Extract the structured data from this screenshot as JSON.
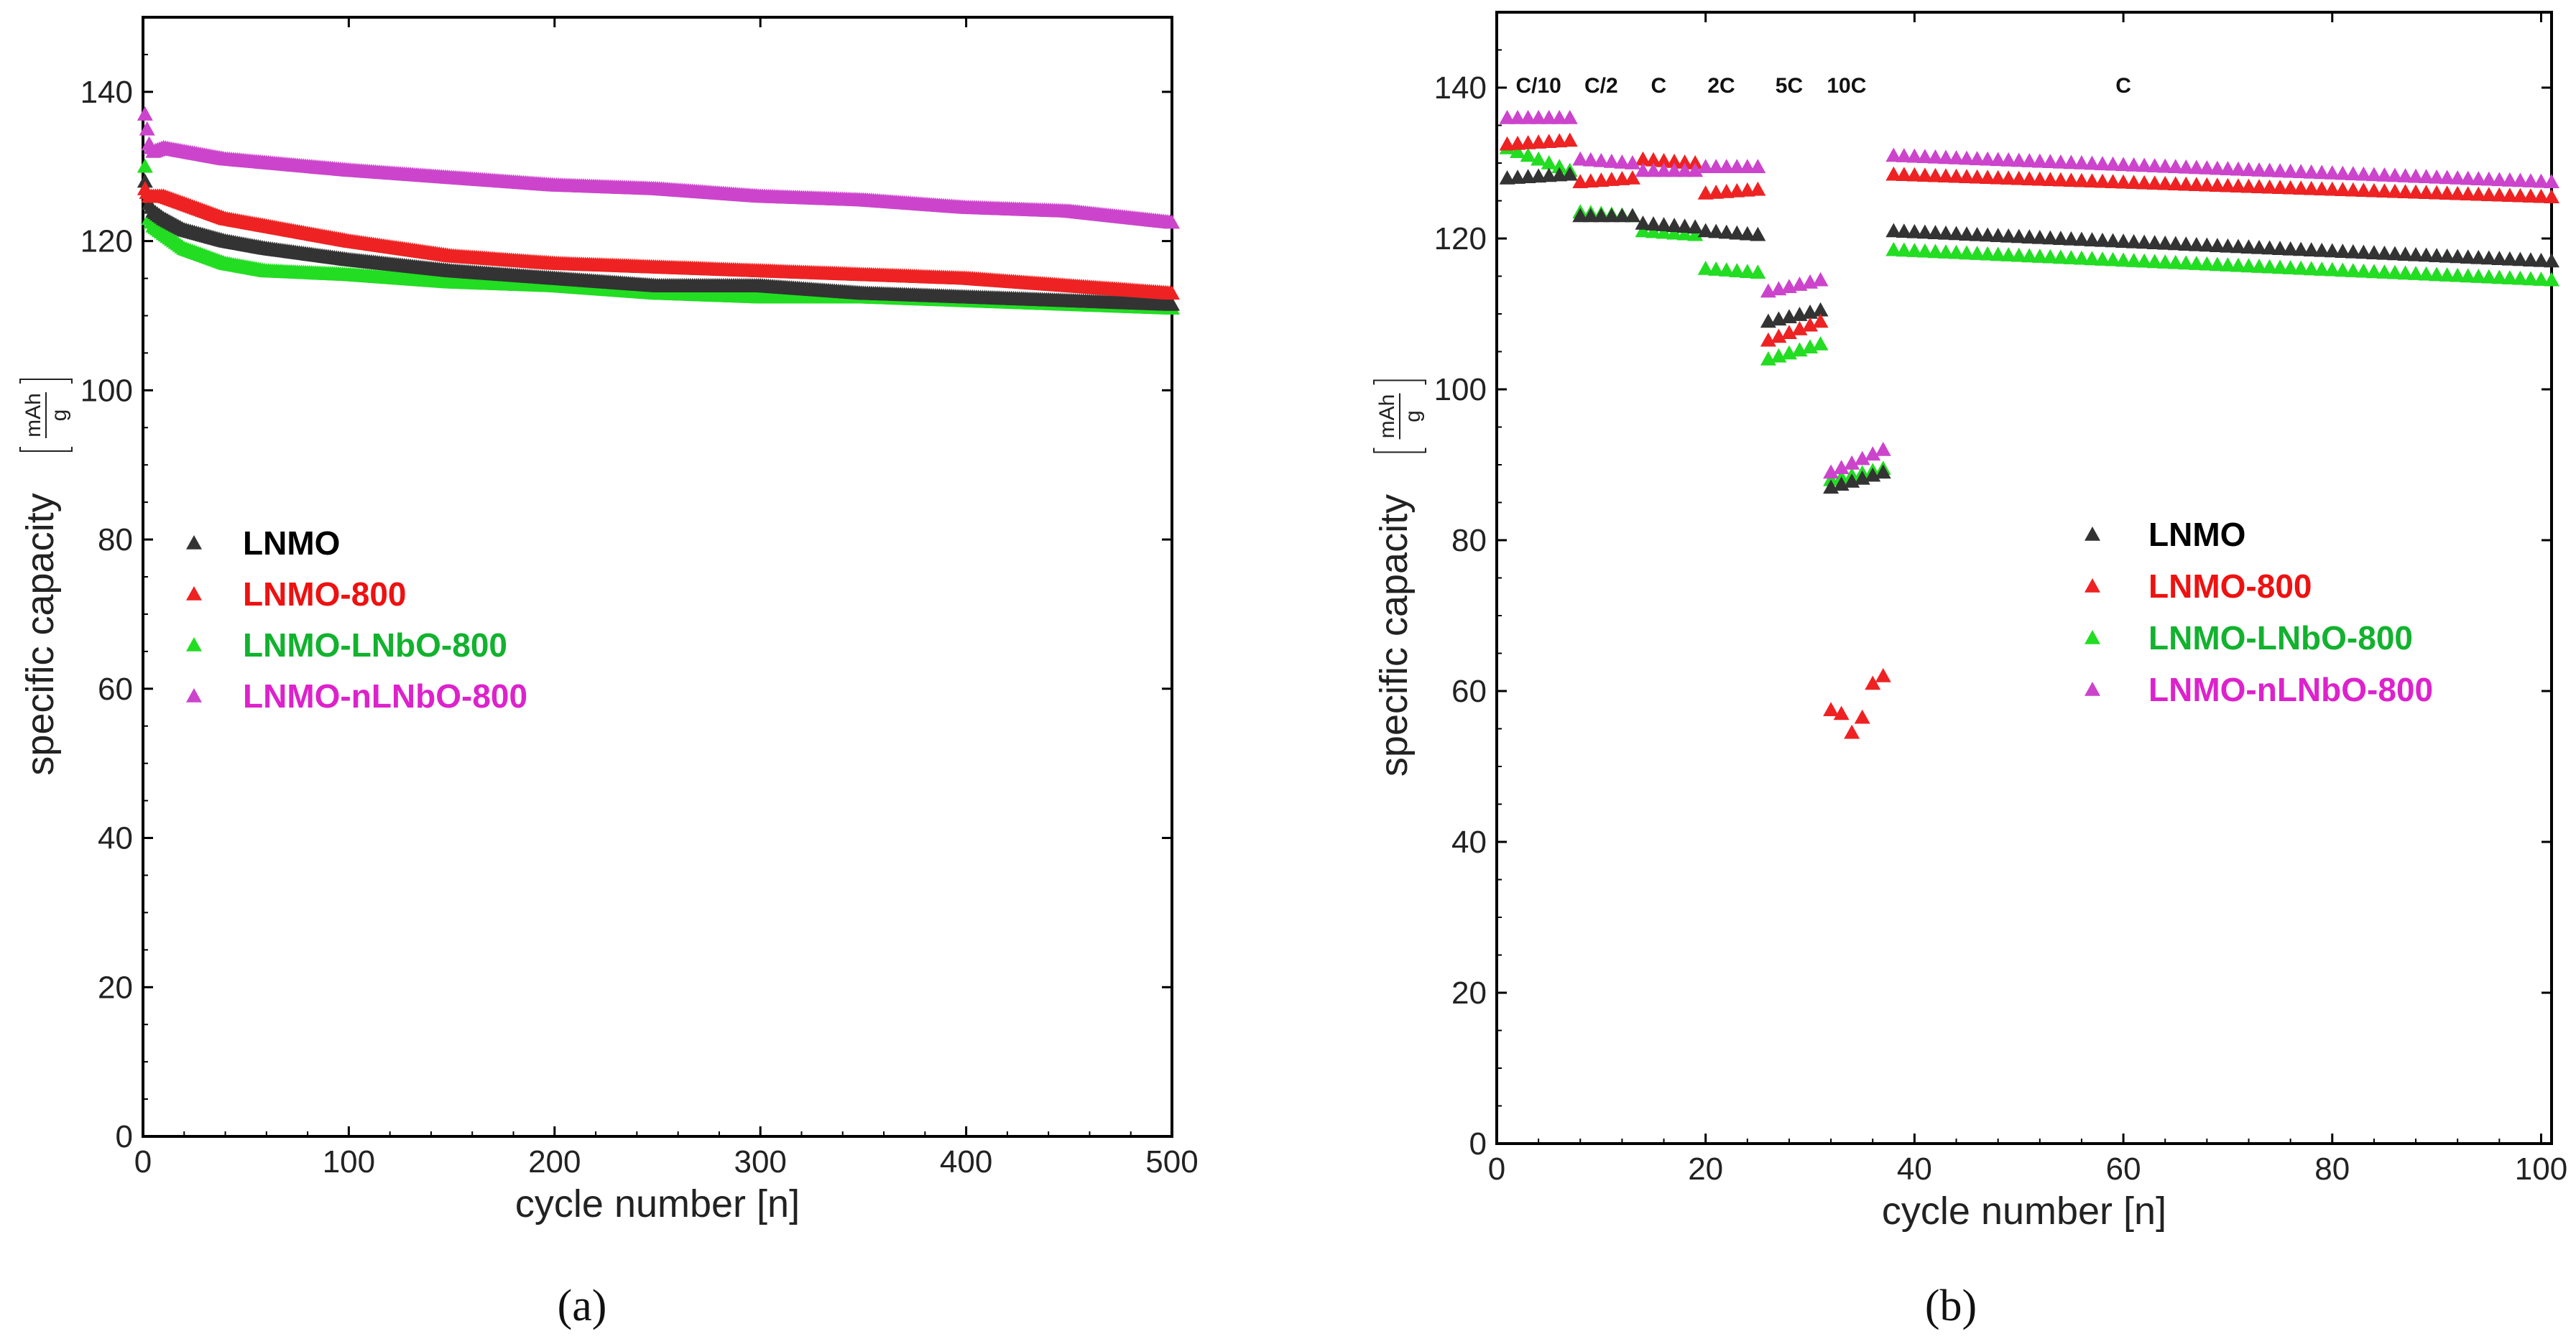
{
  "colors": {
    "LNMO": "#333333",
    "LNMO-800": "#ee2222",
    "LNMO-LNbO-800": "#22dd22",
    "LNMO-nLNbO-800": "#cc44cc"
  },
  "legend_text_colors": {
    "LNMO": "#000000",
    "LNMO-800": "#ee1111",
    "LNMO-LNbO-800": "#12b22e",
    "LNMO-nLNbO-800": "#dd22cc"
  },
  "captions": {
    "a": "(a)",
    "b": "(b)"
  },
  "chart_data": [
    {
      "id": "a",
      "type": "scatter",
      "marker": "triangle",
      "xlabel": "cycle number [n]",
      "ylabel": "specific capacity",
      "yunit_num": "mAh",
      "yunit_den": "g",
      "xlim": [
        0,
        500
      ],
      "ylim": [
        0,
        150
      ],
      "xticks": [
        0,
        100,
        200,
        300,
        400,
        500
      ],
      "yticks": [
        0,
        20,
        40,
        60,
        80,
        100,
        120,
        140
      ],
      "legend_position": "center-left",
      "series": [
        {
          "name": "LNMO",
          "points": [
            [
              1,
              128
            ],
            [
              3,
              125
            ],
            [
              5,
              124
            ],
            [
              10,
              123
            ],
            [
              20,
              121.5
            ],
            [
              40,
              120
            ],
            [
              60,
              119
            ],
            [
              100,
              117.5
            ],
            [
              150,
              116
            ],
            [
              200,
              115
            ],
            [
              250,
              114
            ],
            [
              300,
              114
            ],
            [
              350,
              113
            ],
            [
              400,
              112.5
            ],
            [
              450,
              112
            ],
            [
              500,
              111.5
            ]
          ]
        },
        {
          "name": "LNMO-800",
          "points": [
            [
              1,
              127
            ],
            [
              3,
              126
            ],
            [
              5,
              126
            ],
            [
              10,
              126
            ],
            [
              20,
              125
            ],
            [
              40,
              123
            ],
            [
              60,
              122
            ],
            [
              100,
              120
            ],
            [
              150,
              118
            ],
            [
              200,
              117
            ],
            [
              250,
              116.5
            ],
            [
              300,
              116
            ],
            [
              350,
              115.5
            ],
            [
              400,
              115
            ],
            [
              450,
              114
            ],
            [
              500,
              113
            ]
          ]
        },
        {
          "name": "LNMO-LNbO-800",
          "points": [
            [
              1,
              130
            ],
            [
              3,
              123
            ],
            [
              5,
              122
            ],
            [
              10,
              121
            ],
            [
              20,
              119
            ],
            [
              40,
              117
            ],
            [
              60,
              116
            ],
            [
              100,
              115.5
            ],
            [
              150,
              114.5
            ],
            [
              200,
              114
            ],
            [
              250,
              113
            ],
            [
              300,
              112.5
            ],
            [
              350,
              112.5
            ],
            [
              400,
              112
            ],
            [
              450,
              111.5
            ],
            [
              500,
              111
            ]
          ]
        },
        {
          "name": "LNMO-nLNbO-800",
          "points": [
            [
              1,
              137
            ],
            [
              3,
              133
            ],
            [
              5,
              132
            ],
            [
              10,
              132.5
            ],
            [
              20,
              132
            ],
            [
              40,
              131
            ],
            [
              60,
              130.5
            ],
            [
              100,
              129.5
            ],
            [
              150,
              128.5
            ],
            [
              200,
              127.5
            ],
            [
              250,
              127
            ],
            [
              300,
              126
            ],
            [
              350,
              125.5
            ],
            [
              400,
              124.5
            ],
            [
              450,
              124
            ],
            [
              500,
              122.5
            ]
          ]
        }
      ]
    },
    {
      "id": "b",
      "type": "scatter",
      "marker": "triangle",
      "xlabel": "cycle number [n]",
      "ylabel": "specific capacity",
      "yunit_num": "mAh",
      "yunit_den": "g",
      "xlim": [
        0,
        101
      ],
      "ylim": [
        0,
        150
      ],
      "xticks": [
        0,
        20,
        40,
        60,
        80,
        100
      ],
      "yticks": [
        0,
        20,
        40,
        60,
        80,
        100,
        120,
        140
      ],
      "legend_position": "center-right",
      "rate_labels": [
        {
          "label": "C/10",
          "x": 4
        },
        {
          "label": "C/2",
          "x": 10
        },
        {
          "label": "C",
          "x": 15.5
        },
        {
          "label": "2C",
          "x": 21.5
        },
        {
          "label": "5C",
          "x": 28
        },
        {
          "label": "10C",
          "x": 33.5
        },
        {
          "label": "C",
          "x": 60
        }
      ],
      "series": [
        {
          "name": "LNMO",
          "segments": [
            {
              "x": [
                1,
                7
              ],
              "y": [
                128,
                128.5
              ]
            },
            {
              "x": [
                8,
                13
              ],
              "y": [
                123,
                123
              ]
            },
            {
              "x": [
                14,
                19
              ],
              "y": [
                122,
                121.5
              ]
            },
            {
              "x": [
                20,
                25
              ],
              "y": [
                121,
                120.5
              ]
            },
            {
              "x": [
                26,
                31
              ],
              "y": [
                109,
                110.5
              ]
            },
            {
              "x": [
                32,
                37
              ],
              "y": [
                87,
                89
              ]
            },
            {
              "x": [
                38,
                101
              ],
              "y": [
                121,
                117
              ]
            }
          ]
        },
        {
          "name": "LNMO-800",
          "segments": [
            {
              "x": [
                1,
                7
              ],
              "y": [
                132.5,
                133
              ]
            },
            {
              "x": [
                8,
                13
              ],
              "y": [
                127.5,
                128
              ]
            },
            {
              "x": [
                14,
                19
              ],
              "y": [
                130.5,
                130
              ]
            },
            {
              "x": [
                20,
                25
              ],
              "y": [
                126,
                126.5
              ]
            },
            {
              "x": [
                26,
                31
              ],
              "y": [
                106.5,
                109
              ]
            },
            {
              "x": [
                32,
                37
              ],
              "points": [
                57.5,
                57,
                54.5,
                56.5,
                61,
                62
              ]
            },
            {
              "x": [
                38,
                101
              ],
              "y": [
                128.5,
                125.5
              ]
            }
          ]
        },
        {
          "name": "LNMO-LNbO-800",
          "segments": [
            {
              "x": [
                1,
                7
              ],
              "y": [
                132,
                129
              ]
            },
            {
              "x": [
                8,
                13
              ],
              "y": [
                123.5,
                123
              ]
            },
            {
              "x": [
                14,
                19
              ],
              "y": [
                121,
                120.5
              ]
            },
            {
              "x": [
                20,
                25
              ],
              "y": [
                116,
                115.5
              ]
            },
            {
              "x": [
                26,
                31
              ],
              "y": [
                104,
                106
              ]
            },
            {
              "x": [
                32,
                37
              ],
              "y": [
                88,
                89.5
              ]
            },
            {
              "x": [
                38,
                101
              ],
              "y": [
                118.5,
                114.5
              ]
            }
          ]
        },
        {
          "name": "LNMO-nLNbO-800",
          "segments": [
            {
              "x": [
                1,
                7
              ],
              "y": [
                136,
                136
              ]
            },
            {
              "x": [
                8,
                13
              ],
              "y": [
                130.5,
                130
              ]
            },
            {
              "x": [
                14,
                19
              ],
              "y": [
                129,
                129
              ]
            },
            {
              "x": [
                20,
                25
              ],
              "y": [
                129.5,
                129.5
              ]
            },
            {
              "x": [
                26,
                31
              ],
              "y": [
                113,
                114.5
              ]
            },
            {
              "x": [
                32,
                37
              ],
              "y": [
                89,
                92
              ]
            },
            {
              "x": [
                38,
                101
              ],
              "y": [
                131,
                127.5
              ]
            }
          ]
        }
      ]
    }
  ]
}
